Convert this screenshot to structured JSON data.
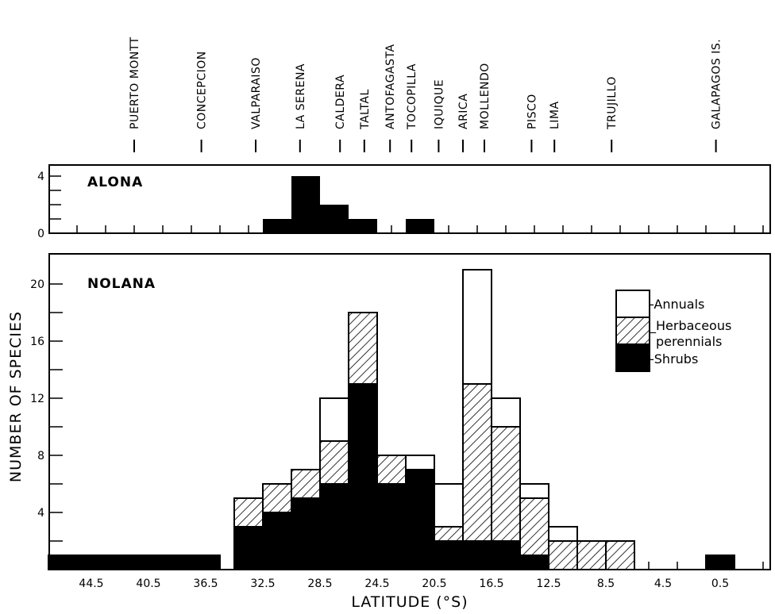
{
  "chart_data": [
    {
      "type": "bar",
      "title": "ALONA",
      "xlabel": "",
      "ylabel": "",
      "y_ticks": [
        "0",
        "4"
      ],
      "ylim": [
        0,
        4.6
      ],
      "bins": [
        {
          "lat": 31.5,
          "value": 1
        },
        {
          "lat": 29.5,
          "value": 4
        },
        {
          "lat": 27.5,
          "value": 2
        },
        {
          "lat": 25.5,
          "value": 1
        },
        {
          "lat": 21.5,
          "value": 1
        }
      ]
    },
    {
      "type": "bar",
      "title": "NOLANA",
      "xlabel": "LATITUDE (°S)",
      "ylabel": "NUMBER OF SPECIES",
      "stacked": true,
      "ylim": [
        0,
        22
      ],
      "y_ticks": [
        "4",
        "8",
        "12",
        "16",
        "20"
      ],
      "x_ticks": [
        "44.5",
        "40.5",
        "36.5",
        "32.5",
        "28.5",
        "24.5",
        "20.5",
        "16.5",
        "12.5",
        "8.5",
        "4.5",
        "0.5"
      ],
      "legend": {
        "position": "top-right",
        "items": [
          {
            "label": "-Annuals",
            "style": "white"
          },
          {
            "label": "_Herbaceous",
            "label2": "perennials",
            "style": "hatched"
          },
          {
            "label": "-Shrubs",
            "style": "black"
          }
        ]
      },
      "bins": [
        {
          "from": 47.5,
          "to": 35.5,
          "shrubs": 1,
          "herbaceous": 0,
          "annuals": 0
        },
        {
          "lat": 33.5,
          "shrubs": 3,
          "herbaceous": 2,
          "annuals": 0
        },
        {
          "lat": 31.5,
          "shrubs": 4,
          "herbaceous": 2,
          "annuals": 0
        },
        {
          "lat": 29.5,
          "shrubs": 5,
          "herbaceous": 2,
          "annuals": 0
        },
        {
          "lat": 27.5,
          "shrubs": 6,
          "herbaceous": 3,
          "annuals": 3
        },
        {
          "lat": 25.5,
          "shrubs": 13,
          "herbaceous": 5,
          "annuals": 0
        },
        {
          "lat": 23.5,
          "shrubs": 6,
          "herbaceous": 2,
          "annuals": 0
        },
        {
          "lat": 21.5,
          "shrubs": 7,
          "herbaceous": 0,
          "annuals": 1
        },
        {
          "lat": 19.5,
          "shrubs": 2,
          "herbaceous": 1,
          "annuals": 3
        },
        {
          "lat": 17.5,
          "shrubs": 2,
          "herbaceous": 11,
          "annuals": 8
        },
        {
          "lat": 15.5,
          "shrubs": 2,
          "herbaceous": 8,
          "annuals": 2
        },
        {
          "lat": 13.5,
          "shrubs": 1,
          "herbaceous": 4,
          "annuals": 1
        },
        {
          "lat": 11.5,
          "shrubs": 0,
          "herbaceous": 2,
          "annuals": 1
        },
        {
          "lat": 9.5,
          "shrubs": 0,
          "herbaceous": 2,
          "annuals": 0
        },
        {
          "lat": 7.5,
          "shrubs": 0,
          "herbaceous": 2,
          "annuals": 0
        },
        {
          "lat": 0.5,
          "shrubs": 1,
          "herbaceous": 0,
          "annuals": 0
        }
      ]
    }
  ],
  "localities": [
    {
      "name": "PUERTO MONTT",
      "lat": 41.5
    },
    {
      "name": "CONCEPCION",
      "lat": 36.8
    },
    {
      "name": "VALPARAISO",
      "lat": 33.0
    },
    {
      "name": "LA SERENA",
      "lat": 29.9
    },
    {
      "name": "CALDERA",
      "lat": 27.1
    },
    {
      "name": "TALTAL",
      "lat": 25.4
    },
    {
      "name": "ANTOFAGASTA",
      "lat": 23.6
    },
    {
      "name": "TOCOPILLA",
      "lat": 22.1
    },
    {
      "name": "IQUIQUE",
      "lat": 20.2
    },
    {
      "name": "ARICA",
      "lat": 18.5
    },
    {
      "name": "MOLLENDO",
      "lat": 17.0
    },
    {
      "name": "PISCO",
      "lat": 13.7
    },
    {
      "name": "LIMA",
      "lat": 12.1
    },
    {
      "name": "TRUJILLO",
      "lat": 8.1
    },
    {
      "name": "GALAPAGOS IS.",
      "lat": 0.8
    }
  ]
}
